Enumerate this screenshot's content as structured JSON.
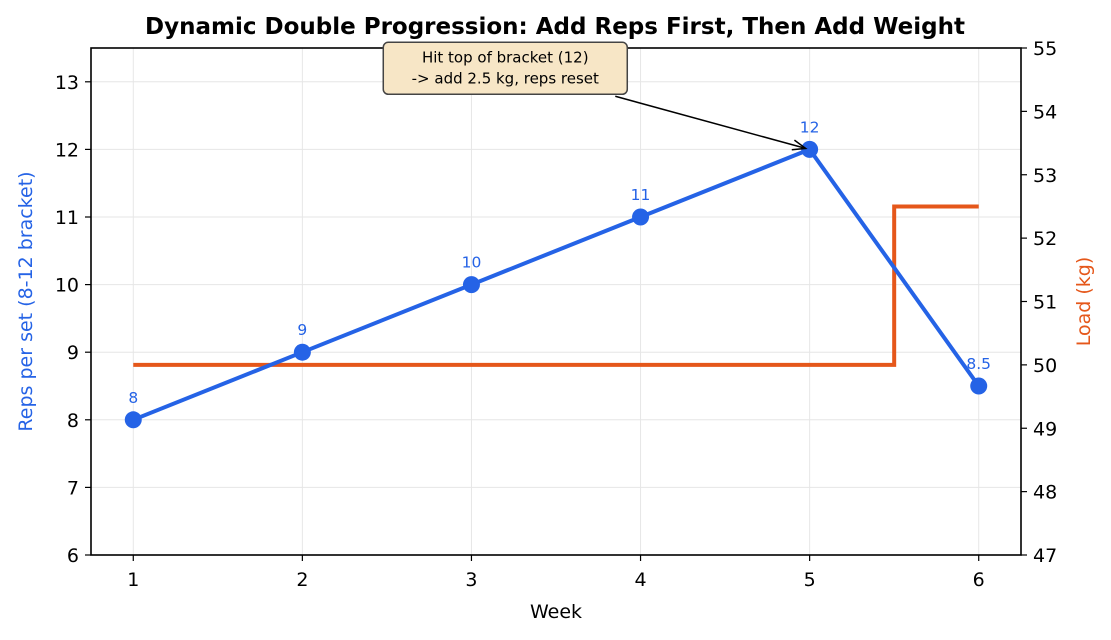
{
  "chart_data": {
    "type": "line",
    "title": "Dynamic Double Progression: Add Reps First, Then Add Weight",
    "xlabel": "Week",
    "ylabel": "Reps per set (8-12 bracket)",
    "y2label": "Load (kg)",
    "x": [
      1,
      2,
      3,
      4,
      5,
      6
    ],
    "xlim": [
      0.75,
      6.25
    ],
    "ylim": [
      6,
      13.5
    ],
    "y2lim": [
      47,
      55
    ],
    "xticks": [
      "1",
      "2",
      "3",
      "4",
      "5",
      "6"
    ],
    "yticks": [
      "6",
      "7",
      "8",
      "9",
      "10",
      "11",
      "12",
      "13"
    ],
    "y2ticks": [
      "47",
      "48",
      "49",
      "50",
      "51",
      "52",
      "53",
      "54",
      "55"
    ],
    "grid": true,
    "legend": "none",
    "series": [
      {
        "axis": "left",
        "style": "line-markers",
        "color": "#2563e6",
        "values": [
          8,
          9,
          10,
          11,
          12,
          8.5
        ],
        "labels": [
          "8",
          "9",
          "10",
          "11",
          "12",
          "8.5"
        ]
      },
      {
        "axis": "right",
        "style": "step-mid",
        "color": "#e5571a",
        "values": [
          50,
          50,
          50,
          50,
          50,
          52.5
        ]
      }
    ],
    "annotation": {
      "lines": [
        "Hit top of bracket (12)",
        "-> add 2.5 kg, reps reset"
      ],
      "points_to": {
        "x": 5,
        "y": 12
      },
      "text_at": {
        "x": 3.2,
        "y": 13.2
      },
      "box_fill": "#f7e6c6",
      "box_stroke": "#444444"
    }
  }
}
